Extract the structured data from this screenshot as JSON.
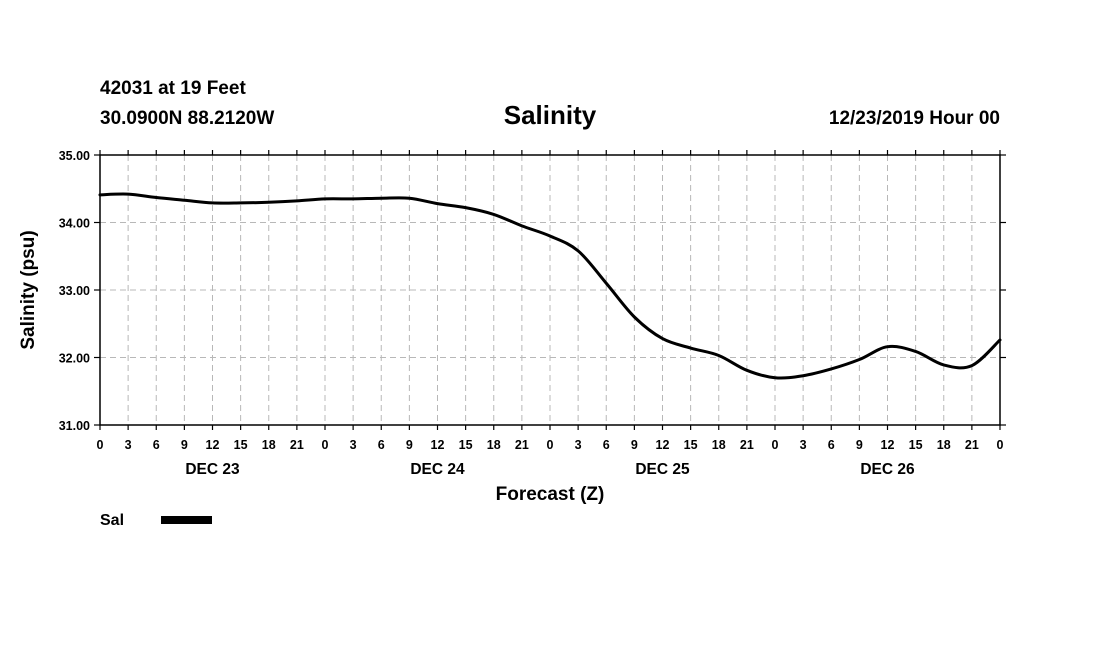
{
  "header": {
    "station": "42031 at 19 Feet",
    "location": "30.0900N 88.2120W",
    "run_time": "12/23/2019 Hour 00"
  },
  "chart_data": {
    "type": "line",
    "title": "Salinity",
    "xlabel": "Forecast (Z)",
    "ylabel": "Salinity (psu)",
    "ylim": [
      31.0,
      35.0
    ],
    "yticks": [
      "31.00",
      "32.00",
      "33.00",
      "34.00",
      "35.00"
    ],
    "x_hours_range": [
      0,
      96
    ],
    "x_tick_labels": [
      "0",
      "3",
      "6",
      "9",
      "12",
      "15",
      "18",
      "21",
      "0",
      "3",
      "6",
      "9",
      "12",
      "15",
      "18",
      "21",
      "0",
      "3",
      "6",
      "9",
      "12",
      "15",
      "18",
      "21",
      "0",
      "3",
      "6",
      "9",
      "12",
      "15",
      "18",
      "21",
      "0"
    ],
    "day_labels": [
      {
        "label": "DEC 23",
        "center_hour": 12
      },
      {
        "label": "DEC 24",
        "center_hour": 36
      },
      {
        "label": "DEC 25",
        "center_hour": 60
      },
      {
        "label": "DEC 26",
        "center_hour": 84
      }
    ],
    "grid": true,
    "series": [
      {
        "name": "Sal",
        "color": "#000000",
        "x_hours": [
          0,
          3,
          6,
          9,
          12,
          15,
          18,
          21,
          24,
          27,
          30,
          33,
          36,
          39,
          42,
          45,
          48,
          51,
          54,
          57,
          60,
          63,
          66,
          69,
          72,
          75,
          78,
          81,
          84,
          87,
          90,
          93,
          96
        ],
        "values": [
          34.41,
          34.42,
          34.37,
          34.33,
          34.29,
          34.29,
          34.3,
          34.32,
          34.35,
          34.35,
          34.36,
          34.36,
          34.28,
          34.22,
          34.12,
          33.95,
          33.8,
          33.58,
          33.1,
          32.6,
          32.28,
          32.14,
          32.03,
          31.81,
          31.7,
          31.73,
          31.83,
          31.97,
          32.16,
          32.09,
          31.89,
          31.88,
          32.26
        ]
      }
    ]
  },
  "legend": {
    "label": "Sal"
  }
}
